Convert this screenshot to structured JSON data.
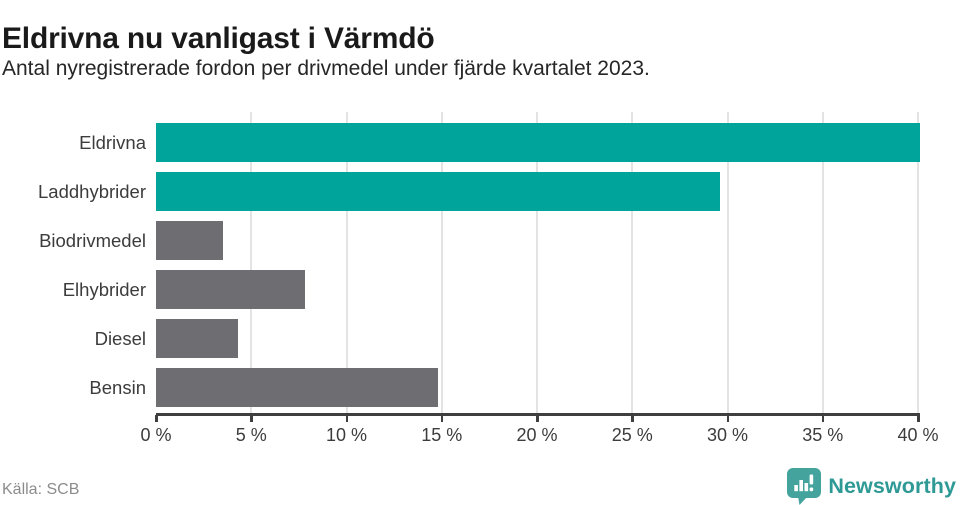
{
  "header": {
    "title": "Eldrivna nu vanligast i Värmdö",
    "subtitle": "Antal nyregistrerade fordon per drivmedel under fjärde kvartalet 2023."
  },
  "footer": {
    "source": "Källa: SCB",
    "brand": "Newsworthy"
  },
  "colors": {
    "teal": "#00a49a",
    "gray": "#6d6d72",
    "grid": "#e3e3e3",
    "axis": "#3f3f3f",
    "logo_icon": "#44a39d",
    "logo_text": "#2f9a95"
  },
  "chart_data": {
    "type": "bar",
    "orientation": "horizontal",
    "title": "Eldrivna nu vanligast i Värmdö",
    "subtitle": "Antal nyregistrerade fordon per drivmedel under fjärde kvartalet 2023.",
    "categories": [
      "Eldrivna",
      "Laddhybrider",
      "Biodrivmedel",
      "Elhybrider",
      "Diesel",
      "Bensin"
    ],
    "values": [
      40.1,
      29.6,
      3.5,
      7.8,
      4.3,
      14.8
    ],
    "unit": "%",
    "bar_colors": [
      "teal",
      "teal",
      "gray",
      "gray",
      "gray",
      "gray"
    ],
    "xlim": [
      0,
      40
    ],
    "xticks": [
      0,
      5,
      10,
      15,
      20,
      25,
      30,
      35,
      40
    ],
    "xtick_labels": [
      "0 %",
      "5 %",
      "10 %",
      "15 %",
      "20 %",
      "25 %",
      "30 %",
      "35 %",
      "40 %"
    ],
    "grid": true,
    "legend": false,
    "xlabel": "",
    "ylabel": ""
  }
}
